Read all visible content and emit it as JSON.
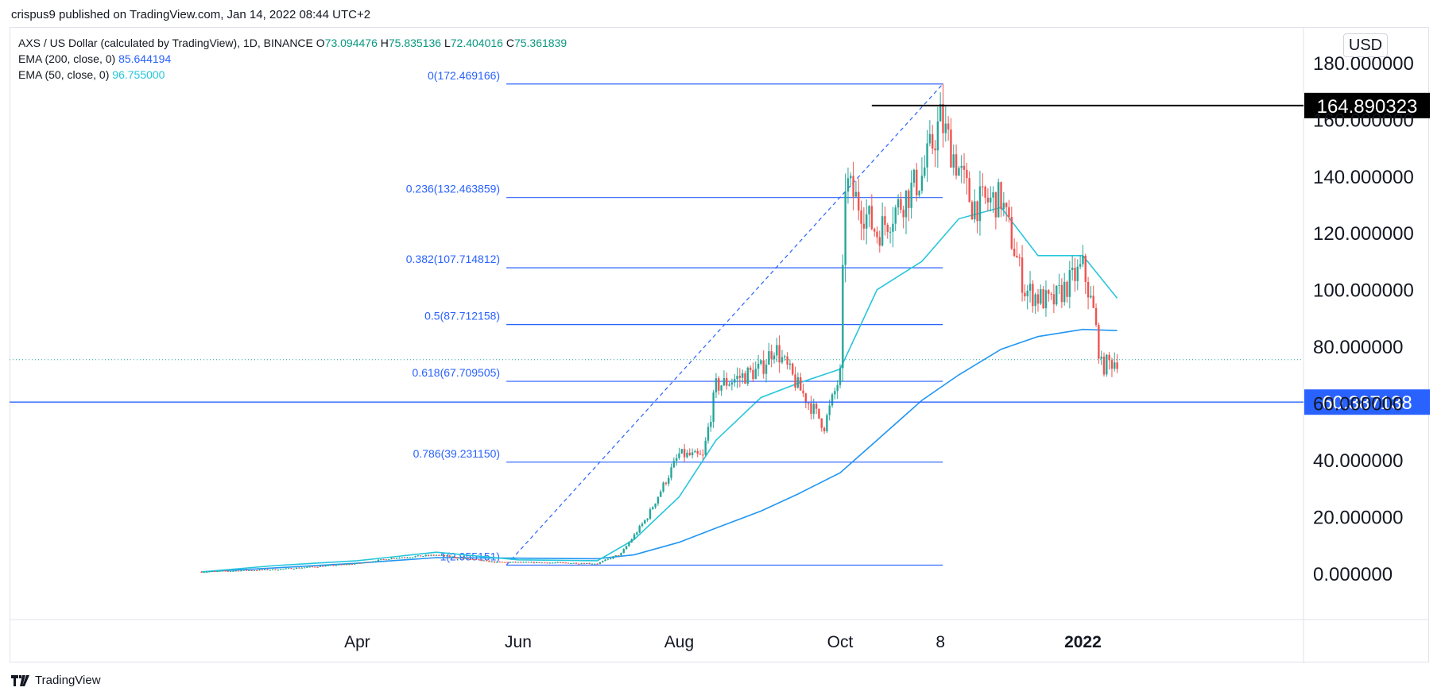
{
  "published": "crispus9 published on TradingView.com, Jan 14, 2022 08:44 UTC+2",
  "footer": {
    "brand": "TradingView",
    "logo_icon": "tradingview-logo-icon"
  },
  "legend": {
    "symbol": "AXS / US Dollar (calculated by TradingView), 1D, BINANCE",
    "o_label": "O",
    "o": "73.094476",
    "h_label": "H",
    "h": "75.835136",
    "l_label": "L",
    "l": "72.404016",
    "c_label": "C",
    "c": "75.361839",
    "ema200_label": "EMA (200, close, 0)",
    "ema200": "85.644194",
    "ema50_label": "EMA (50, close, 0)",
    "ema50": "96.755000"
  },
  "currency": "USD",
  "colors": {
    "up": "#26a69a",
    "down": "#ef5350",
    "fib": "#2962ff",
    "ema50": "#26c6da",
    "ema200": "#2196f3",
    "support": "#2962ff",
    "resistance": "#000000",
    "support_badge": "#2962ff",
    "resistance_badge": "#000000"
  },
  "chart_data": {
    "type": "candlestick",
    "symbol": "AXSUSD",
    "ylim": [
      -15,
      190
    ],
    "y_ticks": [
      "0.000000",
      "20.000000",
      "40.000000",
      "60.000000",
      "80.000000",
      "100.000000",
      "120.000000",
      "140.000000",
      "160.000000",
      "180.000000"
    ],
    "x_ticks": [
      "Apr",
      "Jun",
      "Aug",
      "Oct",
      "8",
      "2022"
    ],
    "x_tick_dates": [
      "2021-04-01",
      "2021-06-01",
      "2021-08-01",
      "2021-10-01",
      "2021-11-08",
      "2022-01-01"
    ],
    "price_labels": [
      {
        "name": "resistance",
        "label": "164.890323",
        "value": 164.890323
      },
      {
        "name": "support",
        "label": "60.387138",
        "value": 60.387138
      }
    ],
    "last_close": 75.361839,
    "fibonacci": [
      {
        "label": "0(172.469166)",
        "value": 172.469166
      },
      {
        "label": "0.236(132.463859)",
        "value": 132.463859
      },
      {
        "label": "0.382(107.714812)",
        "value": 107.714812
      },
      {
        "label": "0.5(87.712158)",
        "value": 87.712158
      },
      {
        "label": "0.618(67.709505)",
        "value": 67.709505
      },
      {
        "label": "0.786(39.231150)",
        "value": 39.23115
      },
      {
        "label": "1(2.955151)",
        "value": 2.955151
      }
    ],
    "fib_start_date": "2021-05-23",
    "fib_end_date": "2021-11-08",
    "fib_extend_to_date": "2021-11-08",
    "resistance_start_date": "2021-10-13",
    "series": [
      {
        "name": "EMA (200, close, 0)",
        "points": [
          [
            "2021-02-01",
            0.6
          ],
          [
            "2021-03-01",
            2.0
          ],
          [
            "2021-04-01",
            3.6
          ],
          [
            "2021-05-01",
            5.6
          ],
          [
            "2021-06-01",
            5.4
          ],
          [
            "2021-07-01",
            5.2
          ],
          [
            "2021-07-15",
            6.6
          ],
          [
            "2021-08-01",
            11.0
          ],
          [
            "2021-08-15",
            16.0
          ],
          [
            "2021-09-01",
            22.0
          ],
          [
            "2021-09-15",
            28.0
          ],
          [
            "2021-10-01",
            35.5
          ],
          [
            "2021-10-15",
            47.0
          ],
          [
            "2021-11-01",
            61.0
          ],
          [
            "2021-11-15",
            70.0
          ],
          [
            "2021-12-01",
            79.0
          ],
          [
            "2021-12-15",
            83.5
          ],
          [
            "2022-01-01",
            86.0
          ],
          [
            "2022-01-14",
            85.6
          ]
        ]
      },
      {
        "name": "EMA (50, close, 0)",
        "points": [
          [
            "2021-02-01",
            0.6
          ],
          [
            "2021-03-01",
            2.8
          ],
          [
            "2021-04-01",
            4.5
          ],
          [
            "2021-05-01",
            7.5
          ],
          [
            "2021-06-01",
            4.8
          ],
          [
            "2021-07-01",
            4.5
          ],
          [
            "2021-07-15",
            12.0
          ],
          [
            "2021-08-01",
            27.0
          ],
          [
            "2021-08-15",
            47.0
          ],
          [
            "2021-09-01",
            62.0
          ],
          [
            "2021-09-15",
            67.0
          ],
          [
            "2021-10-01",
            72.0
          ],
          [
            "2021-10-15",
            100.0
          ],
          [
            "2021-11-01",
            110.0
          ],
          [
            "2021-11-15",
            125.0
          ],
          [
            "2021-12-01",
            129.0
          ],
          [
            "2021-12-15",
            112.0
          ],
          [
            "2022-01-01",
            112.0
          ],
          [
            "2022-01-14",
            97.0
          ]
        ]
      }
    ],
    "ohlc_anchors": [
      [
        "2021-02-01",
        0.6
      ],
      [
        "2021-03-01",
        1.4
      ],
      [
        "2021-04-01",
        3.5
      ],
      [
        "2021-04-15",
        5.5
      ],
      [
        "2021-05-01",
        6.5
      ],
      [
        "2021-05-23",
        4.0
      ],
      [
        "2021-06-15",
        3.8
      ],
      [
        "2021-07-01",
        3.5
      ],
      [
        "2021-07-10",
        7.0
      ],
      [
        "2021-07-20",
        20.0
      ],
      [
        "2021-08-01",
        42.0
      ],
      [
        "2021-08-10",
        41.0
      ],
      [
        "2021-08-15",
        66.0
      ],
      [
        "2021-09-01",
        72.0
      ],
      [
        "2021-09-06",
        80.0
      ],
      [
        "2021-09-15",
        66.0
      ],
      [
        "2021-09-25",
        52.0
      ],
      [
        "2021-10-01",
        70.0
      ],
      [
        "2021-10-03",
        138.0
      ],
      [
        "2021-10-15",
        120.0
      ],
      [
        "2021-11-01",
        140.0
      ],
      [
        "2021-11-08",
        160.0
      ],
      [
        "2021-11-20",
        130.0
      ],
      [
        "2021-12-01",
        132.0
      ],
      [
        "2021-12-10",
        100.0
      ],
      [
        "2021-12-20",
        95.0
      ],
      [
        "2022-01-01",
        108.0
      ],
      [
        "2022-01-05",
        92.0
      ],
      [
        "2022-01-08",
        73.0
      ],
      [
        "2022-01-14",
        75.4
      ]
    ]
  }
}
